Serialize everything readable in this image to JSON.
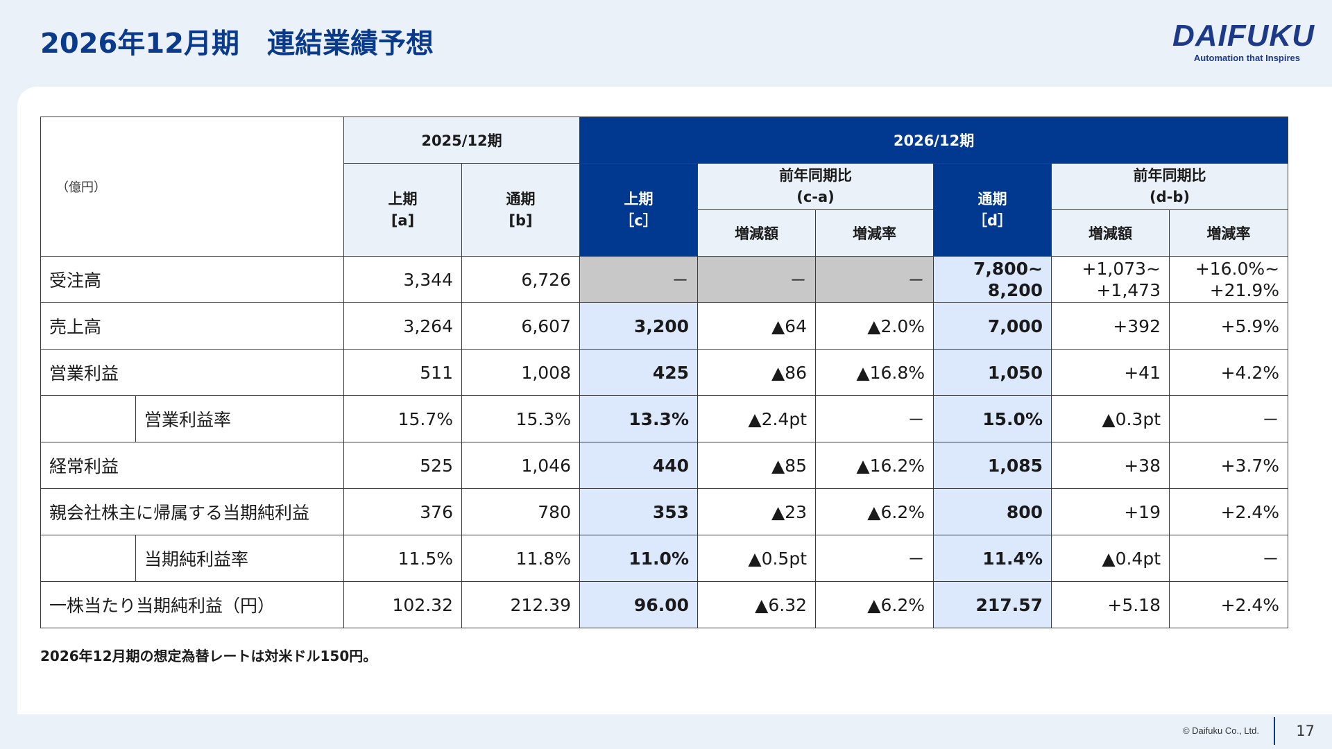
{
  "title": "2026年12月期　連結業績予想",
  "logo": {
    "name": "DAIFUKU",
    "tagline": "Automation that Inspires"
  },
  "table": {
    "unit": "（億円）",
    "hdr_2025": "2025/12期",
    "hdr_2026": "2026/12期",
    "h1_a": "上期",
    "h2_a": "[a]",
    "h1_b": "通期",
    "h2_b": "[b]",
    "h1_c": "上期",
    "h2_c": "［c］",
    "yoy_ca_1": "前年同期比",
    "yoy_ca_2": "(c-a)",
    "h1_d": "通期",
    "h2_d": "［d］",
    "yoy_db_1": "前年同期比",
    "yoy_db_2": "(d-b)",
    "chg_amt": "増減額",
    "chg_rate": "増減率",
    "rows": [
      {
        "label": "受注高",
        "a": "3,344",
        "b": "6,726",
        "c": "－",
        "ca_amt": "－",
        "ca_rate": "－",
        "d1": "7,800~",
        "d2": "8,200",
        "db_amt1": "+1,073~",
        "db_amt2": "+1,473",
        "db_rate1": "+16.0%~",
        "db_rate2": "+21.9%"
      },
      {
        "label": "売上高",
        "a": "3,264",
        "b": "6,607",
        "c": "3,200",
        "ca_amt": "▲64",
        "ca_rate": "▲2.0%",
        "d": "7,000",
        "db_amt": "+392",
        "db_rate": "+5.9%"
      },
      {
        "label": "営業利益",
        "a": "511",
        "b": "1,008",
        "c": "425",
        "ca_amt": "▲86",
        "ca_rate": "▲16.8%",
        "d": "1,050",
        "db_amt": "+41",
        "db_rate": "+4.2%"
      },
      {
        "label": "営業利益率",
        "a": "15.7%",
        "b": "15.3%",
        "c": "13.3%",
        "ca_amt": "▲2.4pt",
        "ca_rate": "－",
        "d": "15.0%",
        "db_amt": "▲0.3pt",
        "db_rate": "－"
      },
      {
        "label": "経常利益",
        "a": "525",
        "b": "1,046",
        "c": "440",
        "ca_amt": "▲85",
        "ca_rate": "▲16.2%",
        "d": "1,085",
        "db_amt": "+38",
        "db_rate": "+3.7%"
      },
      {
        "label": "親会社株主に帰属する当期純利益",
        "a": "376",
        "b": "780",
        "c": "353",
        "ca_amt": "▲23",
        "ca_rate": "▲6.2%",
        "d": "800",
        "db_amt": "+19",
        "db_rate": "+2.4%"
      },
      {
        "label": "当期純利益率",
        "a": "11.5%",
        "b": "11.8%",
        "c": "11.0%",
        "ca_amt": "▲0.5pt",
        "ca_rate": "－",
        "d": "11.4%",
        "db_amt": "▲0.4pt",
        "db_rate": "－"
      },
      {
        "label": "一株当たり当期純利益（円）",
        "a": "102.32",
        "b": "212.39",
        "c": "96.00",
        "ca_amt": "▲6.32",
        "ca_rate": "▲6.2%",
        "d": "217.57",
        "db_amt": "+5.18",
        "db_rate": "+2.4%"
      }
    ]
  },
  "footnote": "2026年12月期の想定為替レートは対米ドル150円。",
  "copyright": "© Daifuku Co., Ltd.",
  "page_number": "17"
}
